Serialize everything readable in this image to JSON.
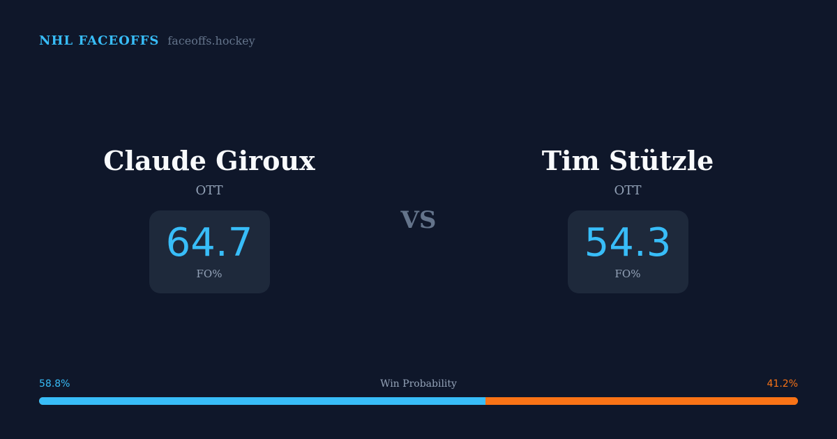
{
  "brand": {
    "name": "NHL FACEOFFS",
    "site": "faceoffs.hockey"
  },
  "players": [
    {
      "name": "Claude Giroux",
      "team": "OTT",
      "fo_pct": "64.7",
      "fo_label": "FO%"
    },
    {
      "name": "Tim Stützle",
      "team": "OTT",
      "fo_pct": "54.3",
      "fo_label": "FO%"
    }
  ],
  "vs": "VS",
  "win_probability": {
    "title": "Win Probability",
    "left": "58.8%",
    "right": "41.2%",
    "left_value": 58.8,
    "right_value": 41.2
  },
  "colors": {
    "background": "#0f172a",
    "card": "#1e293b",
    "accent": "#38bdf8",
    "opponent": "#f97316"
  }
}
